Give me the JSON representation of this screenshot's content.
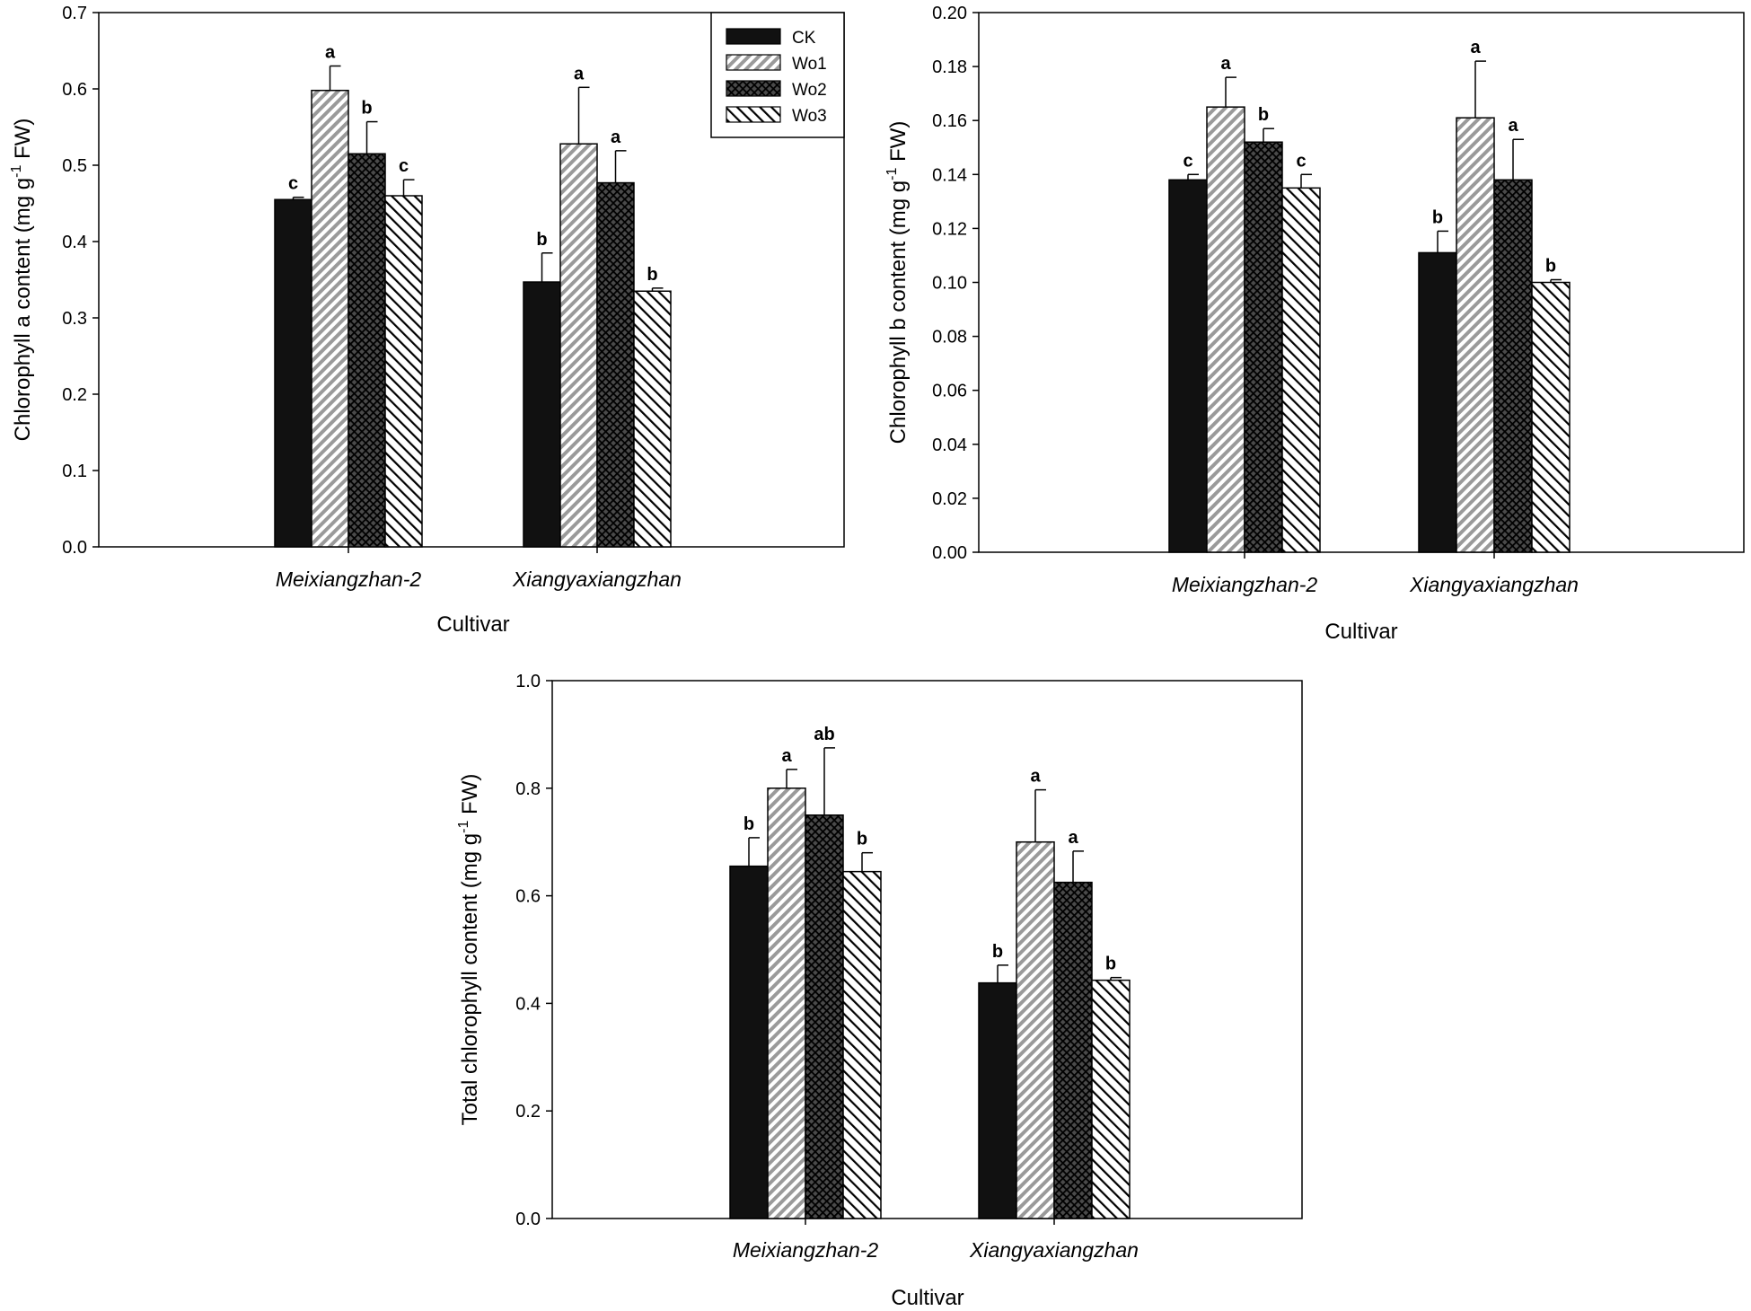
{
  "series_names": [
    "CK",
    "Wo1",
    "Wo2",
    "Wo3"
  ],
  "colors": {
    "ink": "#000000",
    "ck_fill": "#111111",
    "wo2_fill": "#4a4a4a",
    "paper": "#ffffff"
  },
  "chart_data": [
    {
      "type": "bar",
      "panel": "a",
      "title": "",
      "xlabel": "Cultivar",
      "ylabel_prefix": "Chlorophyll a content (mg g",
      "ylabel_sup": "-1",
      "ylabel_suffix": " FW)",
      "categories": [
        "Meixiangzhan-2",
        "Xiangyaxiangzhan"
      ],
      "ylim": [
        0,
        0.7
      ],
      "yticks": [
        "0.0",
        "0.1",
        "0.2",
        "0.3",
        "0.4",
        "0.5",
        "0.6",
        "0.7"
      ],
      "legend": "top-right",
      "series": [
        {
          "name": "CK",
          "values": [
            0.455,
            0.347
          ],
          "errors": [
            0.003,
            0.038
          ],
          "labels": [
            "c",
            "b"
          ]
        },
        {
          "name": "Wo1",
          "values": [
            0.598,
            0.528
          ],
          "errors": [
            0.032,
            0.074
          ],
          "labels": [
            "a",
            "a"
          ]
        },
        {
          "name": "Wo2",
          "values": [
            0.515,
            0.477
          ],
          "errors": [
            0.042,
            0.042
          ],
          "labels": [
            "b",
            "a"
          ]
        },
        {
          "name": "Wo3",
          "values": [
            0.46,
            0.335
          ],
          "errors": [
            0.021,
            0.004
          ],
          "labels": [
            "c",
            "b"
          ]
        }
      ]
    },
    {
      "type": "bar",
      "panel": "b",
      "title": "",
      "xlabel": "Cultivar",
      "ylabel_prefix": "Chlorophyll b content (mg g",
      "ylabel_sup": "-1",
      "ylabel_suffix": " FW)",
      "categories": [
        "Meixiangzhan-2",
        "Xiangyaxiangzhan"
      ],
      "ylim": [
        0,
        0.2
      ],
      "yticks": [
        "0.00",
        "0.02",
        "0.04",
        "0.06",
        "0.08",
        "0.10",
        "0.12",
        "0.14",
        "0.16",
        "0.18",
        "0.20"
      ],
      "legend": "none",
      "series": [
        {
          "name": "CK",
          "values": [
            0.138,
            0.111
          ],
          "errors": [
            0.002,
            0.008
          ],
          "labels": [
            "c",
            "b"
          ]
        },
        {
          "name": "Wo1",
          "values": [
            0.165,
            0.161
          ],
          "errors": [
            0.011,
            0.021
          ],
          "labels": [
            "a",
            "a"
          ]
        },
        {
          "name": "Wo2",
          "values": [
            0.152,
            0.138
          ],
          "errors": [
            0.005,
            0.015
          ],
          "labels": [
            "b",
            "a"
          ]
        },
        {
          "name": "Wo3",
          "values": [
            0.135,
            0.1
          ],
          "errors": [
            0.005,
            0.001
          ],
          "labels": [
            "c",
            "b"
          ]
        }
      ]
    },
    {
      "type": "bar",
      "panel": "c",
      "title": "",
      "xlabel": "Cultivar",
      "ylabel_prefix": "Total chlorophyll content (mg g",
      "ylabel_sup": "-1",
      "ylabel_suffix": " FW)",
      "categories": [
        "Meixiangzhan-2",
        "Xiangyaxiangzhan"
      ],
      "ylim": [
        0,
        1.0
      ],
      "yticks": [
        "0.0",
        "0.2",
        "0.4",
        "0.6",
        "0.8",
        "1.0"
      ],
      "legend": "none",
      "series": [
        {
          "name": "CK",
          "values": [
            0.655,
            0.438
          ],
          "errors": [
            0.053,
            0.033
          ],
          "labels": [
            "b",
            "b"
          ]
        },
        {
          "name": "Wo1",
          "values": [
            0.8,
            0.7
          ],
          "errors": [
            0.035,
            0.097
          ],
          "labels": [
            "a",
            "a"
          ]
        },
        {
          "name": "Wo2",
          "values": [
            0.75,
            0.625
          ],
          "errors": [
            0.125,
            0.058
          ],
          "labels": [
            "ab",
            "a"
          ]
        },
        {
          "name": "Wo3",
          "values": [
            0.645,
            0.443
          ],
          "errors": [
            0.035,
            0.005
          ],
          "labels": [
            "b",
            "b"
          ]
        }
      ]
    }
  ]
}
